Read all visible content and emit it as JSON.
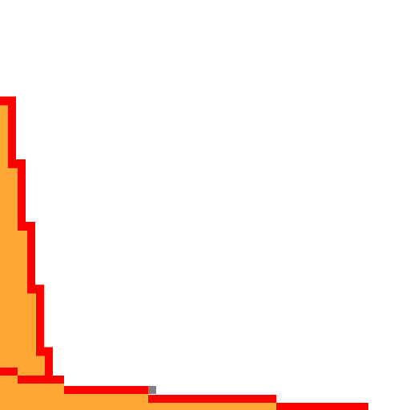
{
  "chart_data": {
    "type": "area",
    "title": "",
    "xlabel": "",
    "ylabel": "",
    "grid": false,
    "series": [
      {
        "values": [
          0.45,
          0.36,
          0.27,
          0.18,
          0.09,
          0.04,
          0.02,
          0.015,
          0.01
        ]
      },
      {
        "values": [
          0.09,
          0.07,
          0.05,
          0.03,
          0.02,
          0.01
        ]
      }
    ],
    "colors": {
      "area_fill": "#ffa733",
      "curve_stroke": "#ff0000",
      "marker": "#808080",
      "background": "#ffffff"
    }
  }
}
